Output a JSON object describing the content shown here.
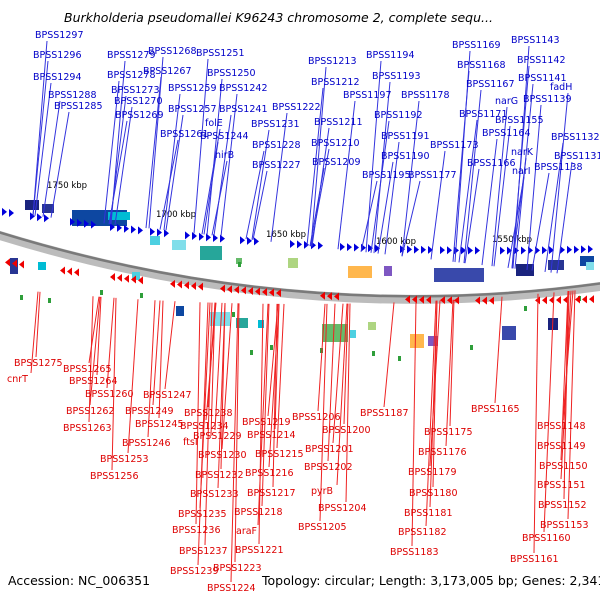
{
  "header": {
    "title": "Burkholderia pseudomallei K96243 chromosome 2, complete sequ..."
  },
  "footer": {
    "accession": "Accession: NC_006351",
    "stats": "Topology: circular; Length: 3,173,005 bp; Genes: 2,341"
  },
  "scale": [
    "1750 kbp",
    "1700 kbp",
    "1650 kbp",
    "1600 kbp",
    "1550 kbp"
  ],
  "colors": {
    "forward": "#0000dd",
    "reverse": "#ee0000",
    "leader_fwd": "#3333dd",
    "leader_rev": "#ee2222"
  },
  "forward_labels": [
    "BPSS1297",
    "BPSS1296",
    "BPSS1294",
    "BPSS1288",
    "BPSS1285",
    "BPSS1279",
    "BPSS1278",
    "BPSS1273",
    "BPSS1270",
    "BPSS1269",
    "BPSS1268",
    "BPSS1267",
    "BPSS1259",
    "BPSS1257",
    "BPSS1261",
    "BPSS1251",
    "BPSS1250",
    "BPSS1242",
    "BPSS1241",
    "folE",
    "BPSS1244",
    "nirB",
    "BPSS1222",
    "BPSS1231",
    "BPSS1228",
    "BPSS1227",
    "BPSS1213",
    "BPSS1212",
    "BPSS1211",
    "BPSS1210",
    "BPSS1209",
    "BPSS1194",
    "BPSS1193",
    "BPSS1197",
    "BPSS1192",
    "BPSS1191",
    "BPSS1190",
    "BPSS1195",
    "BPSS1178",
    "BPSS1177",
    "BPSS1173",
    "BPSS1169",
    "BPSS1168",
    "BPSS1167",
    "BPSS1171",
    "BPSS1166",
    "BPSS1164",
    "BPSS1143",
    "BPSS1142",
    "BPSS1141",
    "BPSS1139",
    "narG",
    "BPSS1155",
    "fadH",
    "BPSS1132",
    "narK",
    "BPSS1131",
    "narI",
    "BPSS1138"
  ],
  "reverse_labels": [
    "BPSS1275",
    "cnrT",
    "BPSS1265",
    "BPSS1264",
    "BPSS1260",
    "BPSS1262",
    "BPSS1263",
    "BPSS1249",
    "BPSS1247",
    "BPSS1245",
    "BPSS1246",
    "BPSS1253",
    "BPSS1256",
    "BPSS1238",
    "BPSS1234",
    "ftsI",
    "BPSS1229",
    "BPSS1230",
    "BPSS1232",
    "BPSS1233",
    "BPSS1235",
    "BPSS1236",
    "BPSS1237",
    "BPSS1239",
    "BPSS1223",
    "BPSS1224",
    "BPSS1219",
    "BPSS1214",
    "BPSS1215",
    "BPSS1216",
    "BPSS1217",
    "BPSS1218",
    "araF",
    "BPSS1221",
    "BPSS1206",
    "BPSS1201",
    "BPSS1200",
    "BPSS1202",
    "pyrB",
    "BPSS1204",
    "BPSS1205",
    "BPSS1187",
    "BPSS1175",
    "BPSS1176",
    "BPSS1179",
    "BPSS1180",
    "BPSS1181",
    "BPSS1182",
    "BPSS1183",
    "BPSS1165",
    "BPSS1148",
    "BPSS1149",
    "BPSS1150",
    "BPSS1151",
    "BPSS1152",
    "BPSS1153",
    "BPSS1160",
    "BPSS1161"
  ]
}
